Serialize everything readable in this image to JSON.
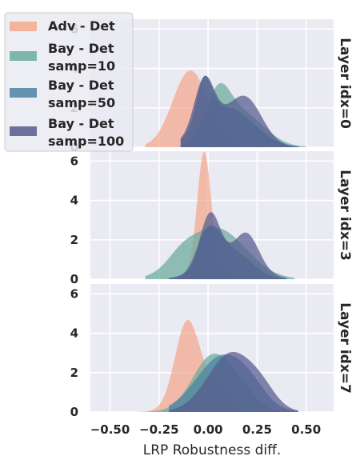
{
  "chart_data": {
    "type": "area",
    "xlabel": "LRP Robustness diff.",
    "xlim": [
      -0.6,
      0.64
    ],
    "ylim": [
      0,
      6.5
    ],
    "x_ticks": [
      -0.5,
      -0.25,
      0.0,
      0.25,
      0.5
    ],
    "x_tick_labels": [
      "−0.50",
      "−0.25",
      "0.00",
      "0.25",
      "0.50"
    ],
    "y_ticks": [
      0,
      2,
      4,
      6
    ],
    "grid": true,
    "legend_placement": "top-left",
    "series_legend": [
      {
        "name": "Adv - Det",
        "color": "#f4a88b"
      },
      {
        "name": "Bay - Det\nsamp=10",
        "color": "#6aab9c"
      },
      {
        "name": "Bay - Det\nsamp=50",
        "color": "#4a82a0"
      },
      {
        "name": "Bay - Det\nsamp=100",
        "color": "#555a8e"
      }
    ],
    "panels": [
      {
        "row_label": "Layer idx=0",
        "series": [
          {
            "name": "Adv - Det",
            "peaks": [
              [
                -0.09,
                0.09,
                3.9
              ]
            ],
            "extent": [
              -0.32,
              0.14
            ]
          },
          {
            "name": "Bay - Det samp=10",
            "peaks": [
              [
                0.05,
                0.06,
                2.0
              ],
              [
                0.16,
                0.12,
                1.8
              ]
            ],
            "extent": [
              -0.14,
              0.5
            ]
          },
          {
            "name": "Bay - Det samp=50",
            "peaks": [
              [
                -0.02,
                0.04,
                2.3
              ],
              [
                0.1,
                0.13,
                2.0
              ]
            ],
            "extent": [
              -0.14,
              0.46
            ]
          },
          {
            "name": "Bay - Det samp=100",
            "peaks": [
              [
                -0.02,
                0.05,
                2.6
              ],
              [
                0.2,
                0.08,
                1.7
              ],
              [
                0.08,
                0.13,
                1.3
              ]
            ],
            "extent": [
              -0.14,
              0.46
            ]
          }
        ]
      },
      {
        "row_label": "Layer idx=3",
        "series": [
          {
            "name": "Adv - Det",
            "peaks": [
              [
                -0.02,
                0.035,
                6.0
              ],
              [
                0.01,
                0.1,
                0.5
              ]
            ],
            "extent": [
              -0.12,
              0.14
            ]
          },
          {
            "name": "Bay - Det samp=10",
            "peaks": [
              [
                0.04,
                0.15,
                2.6
              ],
              [
                -0.14,
                0.07,
                0.5
              ]
            ],
            "extent": [
              -0.32,
              0.44
            ]
          },
          {
            "name": "Bay - Det samp=50",
            "peaks": [
              [
                0.0,
                0.06,
                2.0
              ],
              [
                0.12,
                0.1,
                1.4
              ]
            ],
            "extent": [
              -0.2,
              0.4
            ]
          },
          {
            "name": "Bay - Det samp=100",
            "peaks": [
              [
                0.01,
                0.05,
                2.6
              ],
              [
                0.2,
                0.06,
                1.6
              ],
              [
                0.1,
                0.13,
                1.0
              ]
            ],
            "extent": [
              -0.2,
              0.4
            ]
          }
        ]
      },
      {
        "row_label": "Layer idx=7",
        "series": [
          {
            "name": "Adv - Det",
            "peaks": [
              [
                -0.11,
                0.06,
                3.8
              ],
              [
                0.0,
                0.11,
                1.4
              ]
            ],
            "extent": [
              -0.36,
              0.14
            ]
          },
          {
            "name": "Bay - Det samp=10",
            "peaks": [
              [
                0.02,
                0.1,
                2.8
              ],
              [
                0.17,
                0.08,
                0.8
              ]
            ],
            "extent": [
              -0.3,
              0.42
            ]
          },
          {
            "name": "Bay - Det samp=50",
            "peaks": [
              [
                0.07,
                0.13,
                2.8
              ],
              [
                0.22,
                0.08,
                0.6
              ]
            ],
            "extent": [
              -0.2,
              0.46
            ]
          },
          {
            "name": "Bay - Det samp=100",
            "peaks": [
              [
                0.12,
                0.12,
                3.0
              ],
              [
                0.28,
                0.07,
                0.6
              ]
            ],
            "extent": [
              -0.2,
              0.46
            ]
          }
        ]
      }
    ]
  }
}
